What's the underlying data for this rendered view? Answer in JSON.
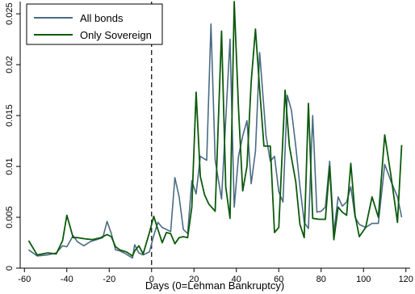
{
  "chart_data": {
    "type": "line",
    "xlabel": "Days (0=Lehman Bankruptcy)",
    "ylabel": "",
    "xlim": [
      -62,
      122
    ],
    "ylim": [
      0,
      0.0262
    ],
    "xticks": [
      -60,
      -40,
      -20,
      0,
      20,
      40,
      60,
      80,
      100,
      120
    ],
    "xtick_labels": [
      "-60",
      "-40",
      "-20",
      "0",
      "20",
      "40",
      "60",
      "80",
      "100",
      "120"
    ],
    "yticks": [
      0,
      0.005,
      0.01,
      0.015,
      0.02,
      0.025
    ],
    "ytick_labels": [
      "0",
      "0.005",
      "0.01",
      "0.015",
      "0.02",
      "0.025"
    ],
    "grid": false,
    "legend_position": "top-left",
    "event_line_x": 0,
    "series": [
      {
        "name": "All bonds",
        "color": "#4a6b84",
        "points": [
          [
            -58,
            0.0018
          ],
          [
            -54,
            0.0012
          ],
          [
            -49,
            0.0013
          ],
          [
            -45,
            0.0015
          ],
          [
            -42,
            0.0022
          ],
          [
            -40,
            0.0021
          ],
          [
            -37,
            0.0032
          ],
          [
            -35,
            0.0026
          ],
          [
            -32,
            0.0022
          ],
          [
            -29,
            0.0026
          ],
          [
            -26,
            0.0028
          ],
          [
            -23,
            0.003
          ],
          [
            -21,
            0.0046
          ],
          [
            -19,
            0.0034
          ],
          [
            -17,
            0.0018
          ],
          [
            -15,
            0.0017
          ],
          [
            -13,
            0.0015
          ],
          [
            -9,
            0.001
          ],
          [
            -8,
            0.0023
          ],
          [
            -6,
            0.0015
          ],
          [
            -4,
            0.0013
          ],
          [
            -1,
            0.0016
          ],
          [
            1,
            0.0032
          ],
          [
            3,
            0.0045
          ],
          [
            5,
            0.004
          ],
          [
            7,
            0.0038
          ],
          [
            9,
            0.0036
          ],
          [
            11,
            0.0089
          ],
          [
            13,
            0.007
          ],
          [
            15,
            0.0038
          ],
          [
            17,
            0.0034
          ],
          [
            19,
            0.0086
          ],
          [
            21,
            0.0073
          ],
          [
            23,
            0.011
          ],
          [
            26,
            0.0106
          ],
          [
            28,
            0.024
          ],
          [
            30,
            0.0106
          ],
          [
            33,
            0.0068
          ],
          [
            37,
            0.0225
          ],
          [
            39,
            0.006
          ],
          [
            41,
            0.011
          ],
          [
            43,
            0.013
          ],
          [
            45,
            0.0145
          ],
          [
            47,
            0.0083
          ],
          [
            49,
            0.0115
          ],
          [
            51,
            0.0212
          ],
          [
            54,
            0.013
          ],
          [
            56,
            0.0105
          ],
          [
            58,
            0.011
          ],
          [
            60,
            0.0075
          ],
          [
            62,
            0.0065
          ],
          [
            64,
            0.017
          ],
          [
            66,
            0.0155
          ],
          [
            68,
            0.012
          ],
          [
            70,
            0.008
          ],
          [
            72,
            0.0045
          ],
          [
            74,
            0.0039
          ],
          [
            76,
            0.015
          ],
          [
            78,
            0.0055
          ],
          [
            80,
            0.0056
          ],
          [
            82,
            0.006
          ],
          [
            84,
            0.0105
          ],
          [
            86,
            0.0035
          ],
          [
            88,
            0.007
          ],
          [
            90,
            0.0061
          ],
          [
            92,
            0.0065
          ],
          [
            94,
            0.008
          ],
          [
            96,
            0.005
          ],
          [
            98,
            0.0043
          ],
          [
            101,
            0.004
          ],
          [
            104,
            0.0044
          ],
          [
            107,
            0.0044
          ],
          [
            110,
            0.0102
          ],
          [
            113,
            0.0085
          ],
          [
            116,
            0.007
          ],
          [
            118,
            0.005
          ]
        ]
      },
      {
        "name": "Only Sovereign",
        "color": "#0b5a0b",
        "points": [
          [
            -58,
            0.0027
          ],
          [
            -54,
            0.0013
          ],
          [
            -49,
            0.0015
          ],
          [
            -45,
            0.0014
          ],
          [
            -42,
            0.0027
          ],
          [
            -40,
            0.0052
          ],
          [
            -37,
            0.003
          ],
          [
            -35,
            0.003
          ],
          [
            -32,
            0.0029
          ],
          [
            -28,
            0.0028
          ],
          [
            -24,
            0.003
          ],
          [
            -21,
            0.0033
          ],
          [
            -19,
            0.0031
          ],
          [
            -17,
            0.0021
          ],
          [
            -15,
            0.0018
          ],
          [
            -12,
            0.0016
          ],
          [
            -9,
            0.0012
          ],
          [
            -8,
            0.0017
          ],
          [
            -6,
            0.0022
          ],
          [
            -4,
            0.0014
          ],
          [
            -1,
            0.0035
          ],
          [
            1,
            0.0051
          ],
          [
            3,
            0.0038
          ],
          [
            5,
            0.0025
          ],
          [
            7,
            0.0035
          ],
          [
            9,
            0.0034
          ],
          [
            11,
            0.0024
          ],
          [
            13,
            0.003
          ],
          [
            15,
            0.0031
          ],
          [
            17,
            0.003
          ],
          [
            19,
            0.006
          ],
          [
            21,
            0.0173
          ],
          [
            23,
            0.009
          ],
          [
            25,
            0.0072
          ],
          [
            27,
            0.0063
          ],
          [
            30,
            0.0056
          ],
          [
            33,
            0.0233
          ],
          [
            35,
            0.008
          ],
          [
            37,
            0.0049
          ],
          [
            39,
            0.0262
          ],
          [
            41,
            0.0157
          ],
          [
            43,
            0.0076
          ],
          [
            45,
            0.01
          ],
          [
            47,
            0.0183
          ],
          [
            49,
            0.0235
          ],
          [
            51,
            0.0176
          ],
          [
            53,
            0.012
          ],
          [
            56,
            0.012
          ],
          [
            58,
            0.0035
          ],
          [
            60,
            0.004
          ],
          [
            63,
            0.0175
          ],
          [
            65,
            0.012
          ],
          [
            68,
            0.0085
          ],
          [
            70,
            0.0043
          ],
          [
            72,
            0.003
          ],
          [
            74,
            0.0162
          ],
          [
            76,
            0.0049
          ],
          [
            79,
            0.0048
          ],
          [
            82,
            0.0048
          ],
          [
            84,
            0.01
          ],
          [
            86,
            0.0028
          ],
          [
            88,
            0.006
          ],
          [
            90,
            0.0055
          ],
          [
            92,
            0.0052
          ],
          [
            94,
            0.0103
          ],
          [
            96,
            0.0052
          ],
          [
            98,
            0.0031
          ],
          [
            101,
            0.004
          ],
          [
            104,
            0.007
          ],
          [
            107,
            0.005
          ],
          [
            110,
            0.0131
          ],
          [
            113,
            0.009
          ],
          [
            116,
            0.0045
          ],
          [
            118,
            0.0121
          ]
        ]
      }
    ]
  }
}
